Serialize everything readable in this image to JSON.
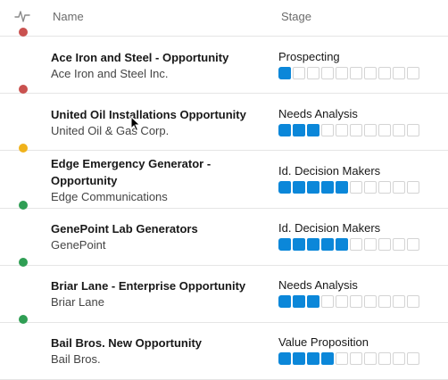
{
  "header": {
    "name_label": "Name",
    "stage_label": "Stage",
    "activity_icon": "pulse-icon"
  },
  "segments_total": 10,
  "colors": {
    "red": "#c9514f",
    "yellow": "#f0b21b",
    "green": "#2f9e54",
    "accent": "#0b87d9"
  },
  "rows": [
    {
      "name": "Ace Iron and Steel - Opportunity",
      "account": "Ace Iron and Steel Inc.",
      "stage": "Prospecting",
      "filled": 1,
      "status_color": "#c9514f"
    },
    {
      "name": "United Oil Installations Opportunity",
      "account": "United Oil & Gas Corp.",
      "stage": "Needs Analysis",
      "filled": 3,
      "status_color": "#c9514f"
    },
    {
      "name": "Edge Emergency Generator - Opportunity",
      "account": "Edge Communications",
      "stage": "Id. Decision Makers",
      "filled": 5,
      "status_color": "#f0b21b"
    },
    {
      "name": "GenePoint Lab Generators",
      "account": "GenePoint",
      "stage": "Id. Decision Makers",
      "filled": 5,
      "status_color": "#2f9e54"
    },
    {
      "name": "Briar Lane - Enterprise Opportunity",
      "account": "Briar Lane",
      "stage": "Needs Analysis",
      "filled": 3,
      "status_color": "#2f9e54"
    },
    {
      "name": "Bail Bros. New Opportunity",
      "account": "Bail Bros.",
      "stage": "Value Proposition",
      "filled": 4,
      "status_color": "#2f9e54"
    }
  ]
}
